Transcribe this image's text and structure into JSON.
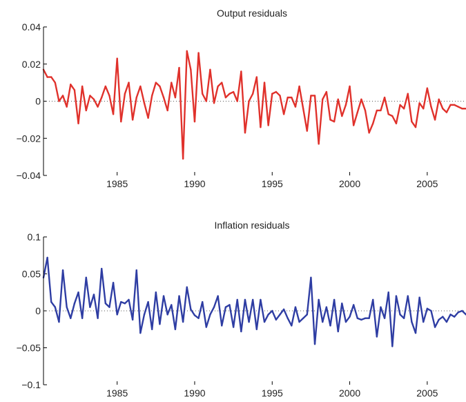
{
  "chart_data": [
    {
      "type": "line",
      "title": "Output residuals",
      "xlabel": "",
      "ylabel": "",
      "xlim": [
        1980.25,
        2007.5
      ],
      "ylim": [
        -0.04,
        0.04
      ],
      "xticks": [
        1985,
        1990,
        1995,
        2000,
        2005
      ],
      "xtick_labels": [
        "1985",
        "1990",
        "1995",
        "2000",
        "2005"
      ],
      "yticks": [
        0.04,
        0.02,
        0,
        -0.02,
        -0.04
      ],
      "ytick_labels": [
        "0.04",
        "0.02",
        "0",
        "−0.02",
        "−0.04"
      ],
      "grid": false,
      "zero_line": "dotted",
      "line_color": "#e0312b",
      "x_start": 1980.25,
      "x_step": 0.25,
      "series": [
        {
          "values": [
            0.017,
            0.013,
            0.013,
            0.01,
            0.0,
            0.003,
            -0.003,
            0.009,
            0.006,
            -0.012,
            0.008,
            -0.005,
            0.003,
            0.001,
            -0.003,
            0.002,
            0.008,
            0.003,
            -0.007,
            0.023,
            -0.011,
            0.004,
            0.01,
            -0.01,
            0.002,
            0.008,
            -0.001,
            -0.009,
            0.003,
            0.01,
            0.008,
            0.002,
            -0.005,
            0.01,
            0.002,
            0.018,
            -0.031,
            0.027,
            0.017,
            -0.011,
            0.026,
            0.004,
            0.0,
            0.017,
            -0.001,
            0.008,
            0.01,
            0.002,
            0.004,
            0.005,
            0.0,
            0.016,
            -0.017,
            0.0,
            0.004,
            0.013,
            -0.014,
            0.01,
            -0.013,
            0.004,
            0.005,
            0.003,
            -0.007,
            0.002,
            0.002,
            -0.003,
            0.008,
            -0.004,
            -0.016,
            0.003,
            0.003,
            -0.023,
            0.001,
            0.005,
            -0.01,
            -0.011,
            0.001,
            -0.008,
            -0.002,
            0.008,
            -0.013,
            -0.006,
            0.001,
            -0.005,
            -0.017,
            -0.012,
            -0.005,
            -0.005,
            0.002,
            -0.007,
            -0.008,
            -0.012,
            -0.002,
            -0.004,
            0.004,
            -0.011,
            -0.014,
            -0.001,
            -0.004,
            0.007,
            -0.003,
            -0.01,
            0.001,
            -0.004,
            -0.006,
            -0.002,
            -0.002,
            -0.003,
            -0.004,
            -0.004
          ]
        }
      ]
    },
    {
      "type": "line",
      "title": "Inflation residuals",
      "xlabel": "",
      "ylabel": "",
      "xlim": [
        1980.25,
        2007.5
      ],
      "ylim": [
        -0.1,
        0.1
      ],
      "xticks": [
        1985,
        1990,
        1995,
        2000,
        2005
      ],
      "xtick_labels": [
        "1985",
        "1990",
        "1995",
        "2000",
        "2005"
      ],
      "yticks": [
        0.1,
        0.05,
        0,
        -0.05,
        -0.1
      ],
      "ytick_labels": [
        "0.1",
        "0.05",
        "0",
        "−0.05",
        "−0.1"
      ],
      "grid": false,
      "zero_line": "dotted",
      "line_color": "#2e3da3",
      "x_start": 1980.25,
      "x_step": 0.25,
      "series": [
        {
          "values": [
            0.045,
            0.072,
            0.012,
            0.005,
            -0.015,
            0.055,
            0.005,
            -0.01,
            0.01,
            0.025,
            -0.01,
            0.045,
            0.005,
            0.022,
            -0.01,
            0.057,
            0.01,
            0.005,
            0.038,
            -0.005,
            0.012,
            0.01,
            0.015,
            -0.012,
            0.055,
            -0.03,
            -0.005,
            0.012,
            -0.025,
            0.025,
            -0.018,
            0.02,
            -0.005,
            0.008,
            -0.025,
            0.02,
            -0.015,
            0.032,
            0.002,
            -0.006,
            -0.01,
            0.012,
            -0.022,
            -0.005,
            0.005,
            0.02,
            -0.02,
            0.005,
            0.008,
            -0.022,
            0.015,
            -0.028,
            0.015,
            -0.015,
            0.015,
            -0.025,
            0.015,
            -0.015,
            -0.005,
            0.0,
            -0.012,
            -0.005,
            0.002,
            -0.01,
            -0.02,
            0.005,
            -0.015,
            -0.01,
            -0.005,
            0.045,
            -0.045,
            0.015,
            -0.015,
            0.005,
            -0.02,
            0.015,
            -0.028,
            0.01,
            -0.015,
            -0.008,
            0.008,
            -0.01,
            -0.012,
            -0.01,
            -0.01,
            0.015,
            -0.035,
            0.005,
            -0.01,
            0.025,
            -0.048,
            0.02,
            -0.005,
            -0.01,
            0.02,
            -0.015,
            -0.03,
            0.018,
            -0.015,
            0.003,
            0.0,
            -0.022,
            -0.012,
            -0.008,
            -0.015,
            -0.005,
            -0.008,
            -0.002,
            0.0,
            -0.005,
            0.003,
            0.0
          ]
        }
      ]
    }
  ]
}
